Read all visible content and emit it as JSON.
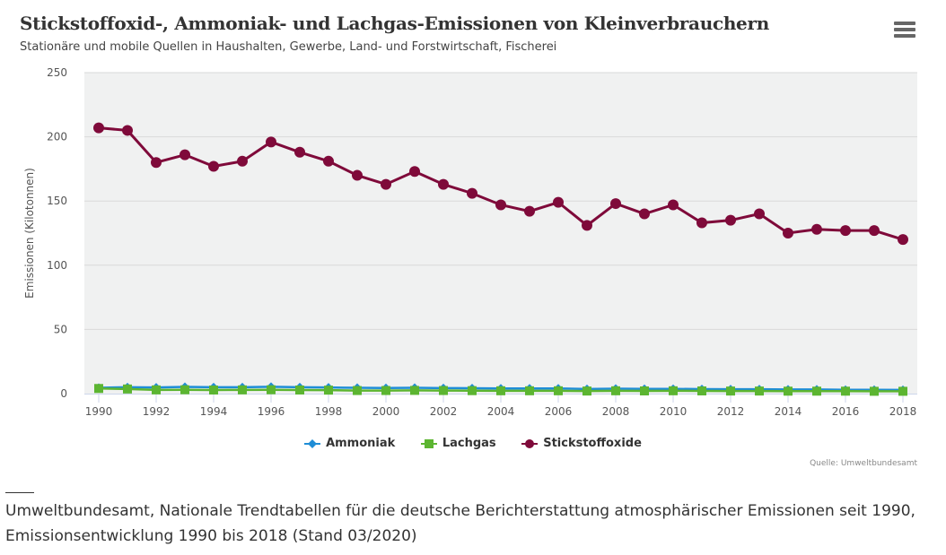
{
  "header": {
    "title": "Stickstoffoxid-, Ammoniak- und Lachgas-Emissionen von Kleinverbrauchern",
    "subtitle": "Stationäre und mobile Quellen in Haushalten, Gewerbe, Land- und Forstwirtschaft, Fischerei",
    "menu_icon": "hamburger-menu-icon"
  },
  "credits": "Quelle: Umweltbundesamt",
  "footnote": "Umweltbundesamt, Nationale Trendtabellen für die deutsche Berichterstattung atmosphärischer Emissionen seit 1990, Emissionsentwicklung 1990 bis 2018 (Stand 03/2020)",
  "colors": {
    "ammoniak": "#1f8dd6",
    "lachgas": "#5cb531",
    "stickstoffoxide": "#7f0a3a",
    "plot_bg": "#f0f1f1",
    "grid": "#d9d9d9"
  },
  "chart_data": {
    "type": "line",
    "title": "Stickstoffoxid-, Ammoniak- und Lachgas-Emissionen von Kleinverbrauchern",
    "subtitle": "Stationäre und mobile Quellen in Haushalten, Gewerbe, Land- und Forstwirtschaft, Fischerei",
    "xlabel": "",
    "ylabel": "Emissionen (Kilotonnen)",
    "ylim": [
      0,
      250
    ],
    "yticks": [
      0,
      50,
      100,
      150,
      200,
      250
    ],
    "xticks": [
      1990,
      1992,
      1994,
      1996,
      1998,
      2000,
      2002,
      2004,
      2006,
      2008,
      2010,
      2012,
      2014,
      2016,
      2018
    ],
    "grid": true,
    "legend_position": "bottom-center",
    "x": [
      1990,
      1991,
      1992,
      1993,
      1994,
      1995,
      1996,
      1997,
      1998,
      1999,
      2000,
      2001,
      2002,
      2003,
      2004,
      2005,
      2006,
      2007,
      2008,
      2009,
      2010,
      2011,
      2012,
      2013,
      2014,
      2015,
      2016,
      2017,
      2018
    ],
    "series": [
      {
        "name": "Ammoniak",
        "marker": "diamond",
        "color": "#1f8dd6",
        "values": [
          4.5,
          5.0,
          4.8,
          5.2,
          5.0,
          5.0,
          5.3,
          5.0,
          4.8,
          4.5,
          4.4,
          4.5,
          4.3,
          4.2,
          4.0,
          4.0,
          4.0,
          3.6,
          3.8,
          3.7,
          3.7,
          3.5,
          3.4,
          3.4,
          3.2,
          3.2,
          3.0,
          3.0,
          2.9
        ]
      },
      {
        "name": "Lachgas",
        "marker": "square",
        "color": "#5cb531",
        "values": [
          4.0,
          3.6,
          2.9,
          3.0,
          2.8,
          2.9,
          3.0,
          2.8,
          2.7,
          2.4,
          2.4,
          2.5,
          2.4,
          2.3,
          2.2,
          2.2,
          2.2,
          2.0,
          2.2,
          2.1,
          2.2,
          2.1,
          2.0,
          2.0,
          1.9,
          1.9,
          1.9,
          1.8,
          1.8
        ]
      },
      {
        "name": "Stickstoffoxide",
        "marker": "circle",
        "color": "#7f0a3a",
        "values": [
          207,
          205,
          180,
          186,
          177,
          181,
          196,
          188,
          181,
          170,
          163,
          173,
          163,
          156,
          147,
          142,
          149,
          131,
          148,
          140,
          147,
          133,
          135,
          140,
          125,
          128,
          127,
          127,
          120
        ]
      }
    ]
  }
}
